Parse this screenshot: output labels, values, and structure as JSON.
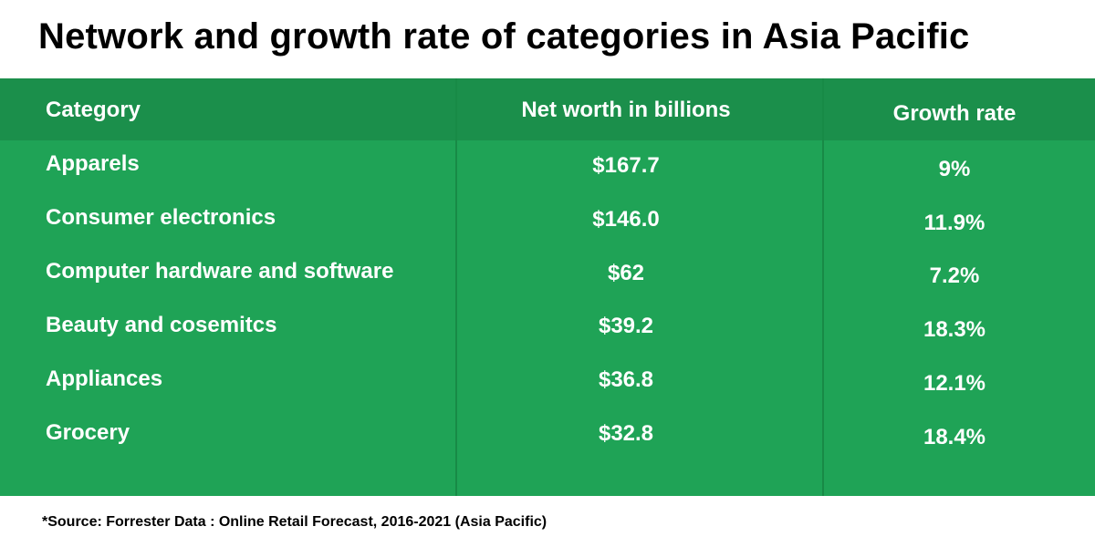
{
  "title": "Network and growth rate of categories in Asia Pacific",
  "source": "*Source: Forrester Data : Online Retail Forecast, 2016-2021 (Asia Pacific)",
  "colors": {
    "table_bg": "#1fa356",
    "header_bg": "#1b8f4b",
    "divider": "#188a46",
    "text_on_table": "#ffffff"
  },
  "chart_data": {
    "type": "table",
    "title": "Network and growth rate of categories in Asia Pacific",
    "columns": [
      "Category",
      "Net worth in billions",
      "Growth rate"
    ],
    "rows": [
      [
        "Apparels",
        "$167.7",
        "9%"
      ],
      [
        "Consumer electronics",
        "$146.0",
        "11.9%"
      ],
      [
        "Computer hardware and software",
        "$62",
        "7.2%"
      ],
      [
        "Beauty and cosemitcs",
        "$39.2",
        "18.3%"
      ],
      [
        "Appliances",
        "$36.8",
        "12.1%"
      ],
      [
        "Grocery",
        "$32.8",
        "18.4%"
      ]
    ]
  }
}
